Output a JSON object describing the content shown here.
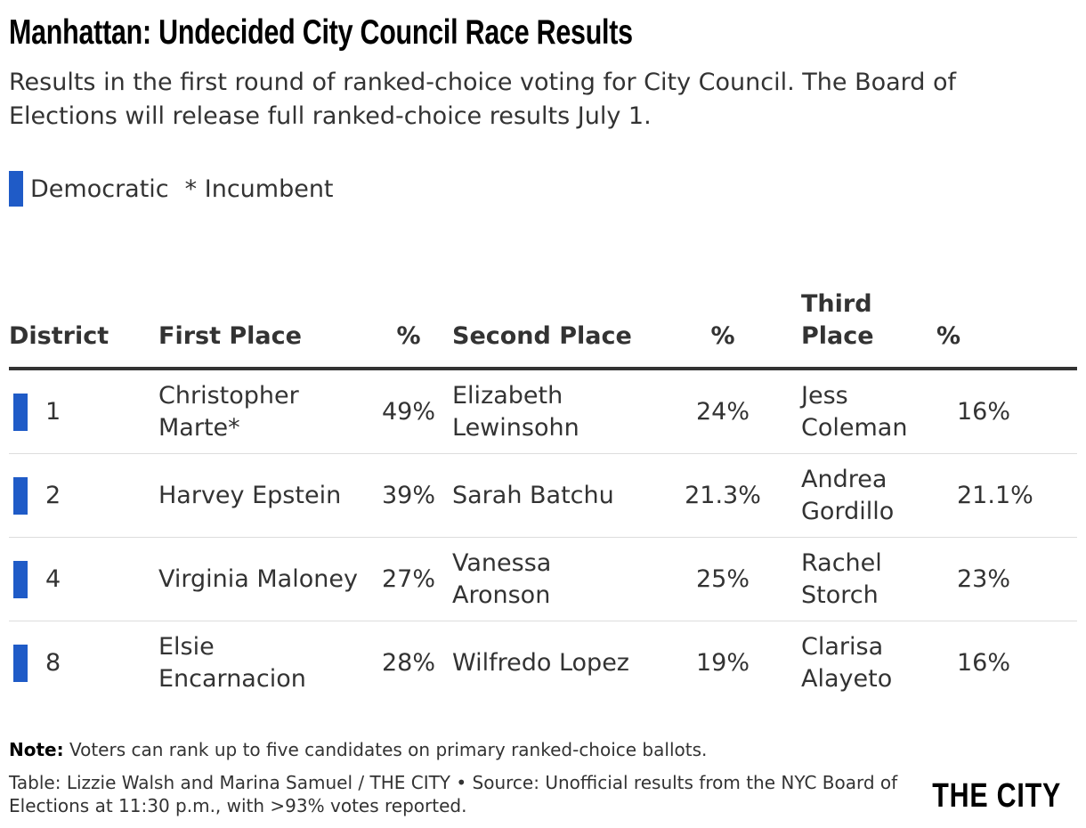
{
  "header": {
    "title": "Manhattan: Undecided City Council Race Results",
    "subtitle": "Results in the first round of ranked-choice voting for City Council. The Board of Elections will release full ranked-choice results July 1."
  },
  "legend": {
    "party_label": "Democratic",
    "party_color": "#1f5bc7",
    "incumbent_label": "* Incumbent"
  },
  "chart_data": {
    "type": "table",
    "columns": [
      "District",
      "First Place",
      "%",
      "Second Place",
      "%",
      "Third Place",
      "%"
    ],
    "rows": [
      {
        "district": "1",
        "party": "Democratic",
        "first_name": "Christopher Marte*",
        "first_pct": "49%",
        "second_name": "Elizabeth Lewinsohn",
        "second_pct": "24%",
        "third_name": "Jess Coleman",
        "third_pct": "16%"
      },
      {
        "district": "2",
        "party": "Democratic",
        "first_name": "Harvey Epstein",
        "first_pct": "39%",
        "second_name": "Sarah Batchu",
        "second_pct": "21.3%",
        "third_name": "Andrea Gordillo",
        "third_pct": "21.1%"
      },
      {
        "district": "4",
        "party": "Democratic",
        "first_name": "Virginia Maloney",
        "first_pct": "27%",
        "second_name": "Vanessa Aronson",
        "second_pct": "25%",
        "third_name": "Rachel Storch",
        "third_pct": "23%"
      },
      {
        "district": "8",
        "party": "Democratic",
        "first_name": "Elsie Encarnacion",
        "first_pct": "28%",
        "second_name": "Wilfredo Lopez",
        "second_pct": "19%",
        "third_name": "Clarisa Alayeto",
        "third_pct": "16%"
      }
    ]
  },
  "footer": {
    "note_label": "Note:",
    "note_text": "Voters can rank up to five candidates on primary ranked-choice ballots.",
    "source": "Table: Lizzie Walsh and Marina Samuel / THE CITY • Source: Unofficial results from the NYC Board of Elections at 11:30 p.m., with >93% votes reported.",
    "logo": "THE CITY"
  }
}
